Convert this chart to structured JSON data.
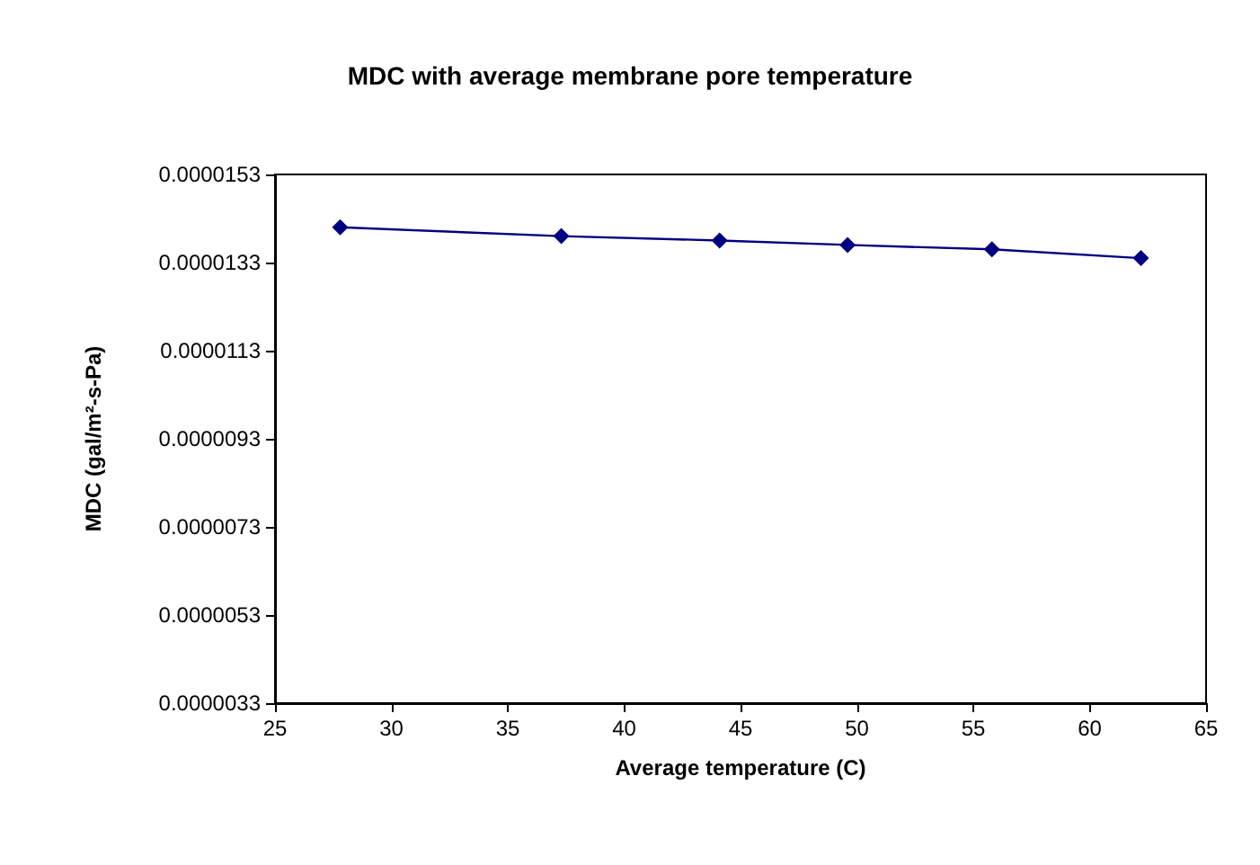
{
  "chart_data": {
    "type": "line",
    "title": "MDC with average membrane pore temperature",
    "xlabel": "Average temperature (C)",
    "ylabel": "MDC (gal/m²-s-Pa)",
    "x": [
      27.8,
      37.3,
      44.1,
      49.6,
      55.8,
      62.2
    ],
    "series": [
      {
        "color": "#000080",
        "values": [
          1.41e-05,
          1.39e-05,
          1.38e-05,
          1.37e-05,
          1.36e-05,
          1.34e-05
        ]
      }
    ],
    "xlim": [
      25,
      65
    ],
    "xticks": [
      25,
      30,
      35,
      40,
      45,
      50,
      55,
      60,
      65
    ],
    "ylim": [
      3.3e-06,
      1.53e-05
    ],
    "yticks": [
      {
        "value": 3.3e-06,
        "label": "0.0000033"
      },
      {
        "value": 5.3e-06,
        "label": "0.0000053"
      },
      {
        "value": 7.3e-06,
        "label": "0.0000073"
      },
      {
        "value": 9.3e-06,
        "label": "0.0000093"
      },
      {
        "value": 1.13e-05,
        "label": "0.0000113"
      },
      {
        "value": 1.33e-05,
        "label": "0.0000133"
      },
      {
        "value": 1.53e-05,
        "label": "0.0000153"
      }
    ],
    "grid": false,
    "marker": "diamond",
    "line_style": "solid"
  }
}
